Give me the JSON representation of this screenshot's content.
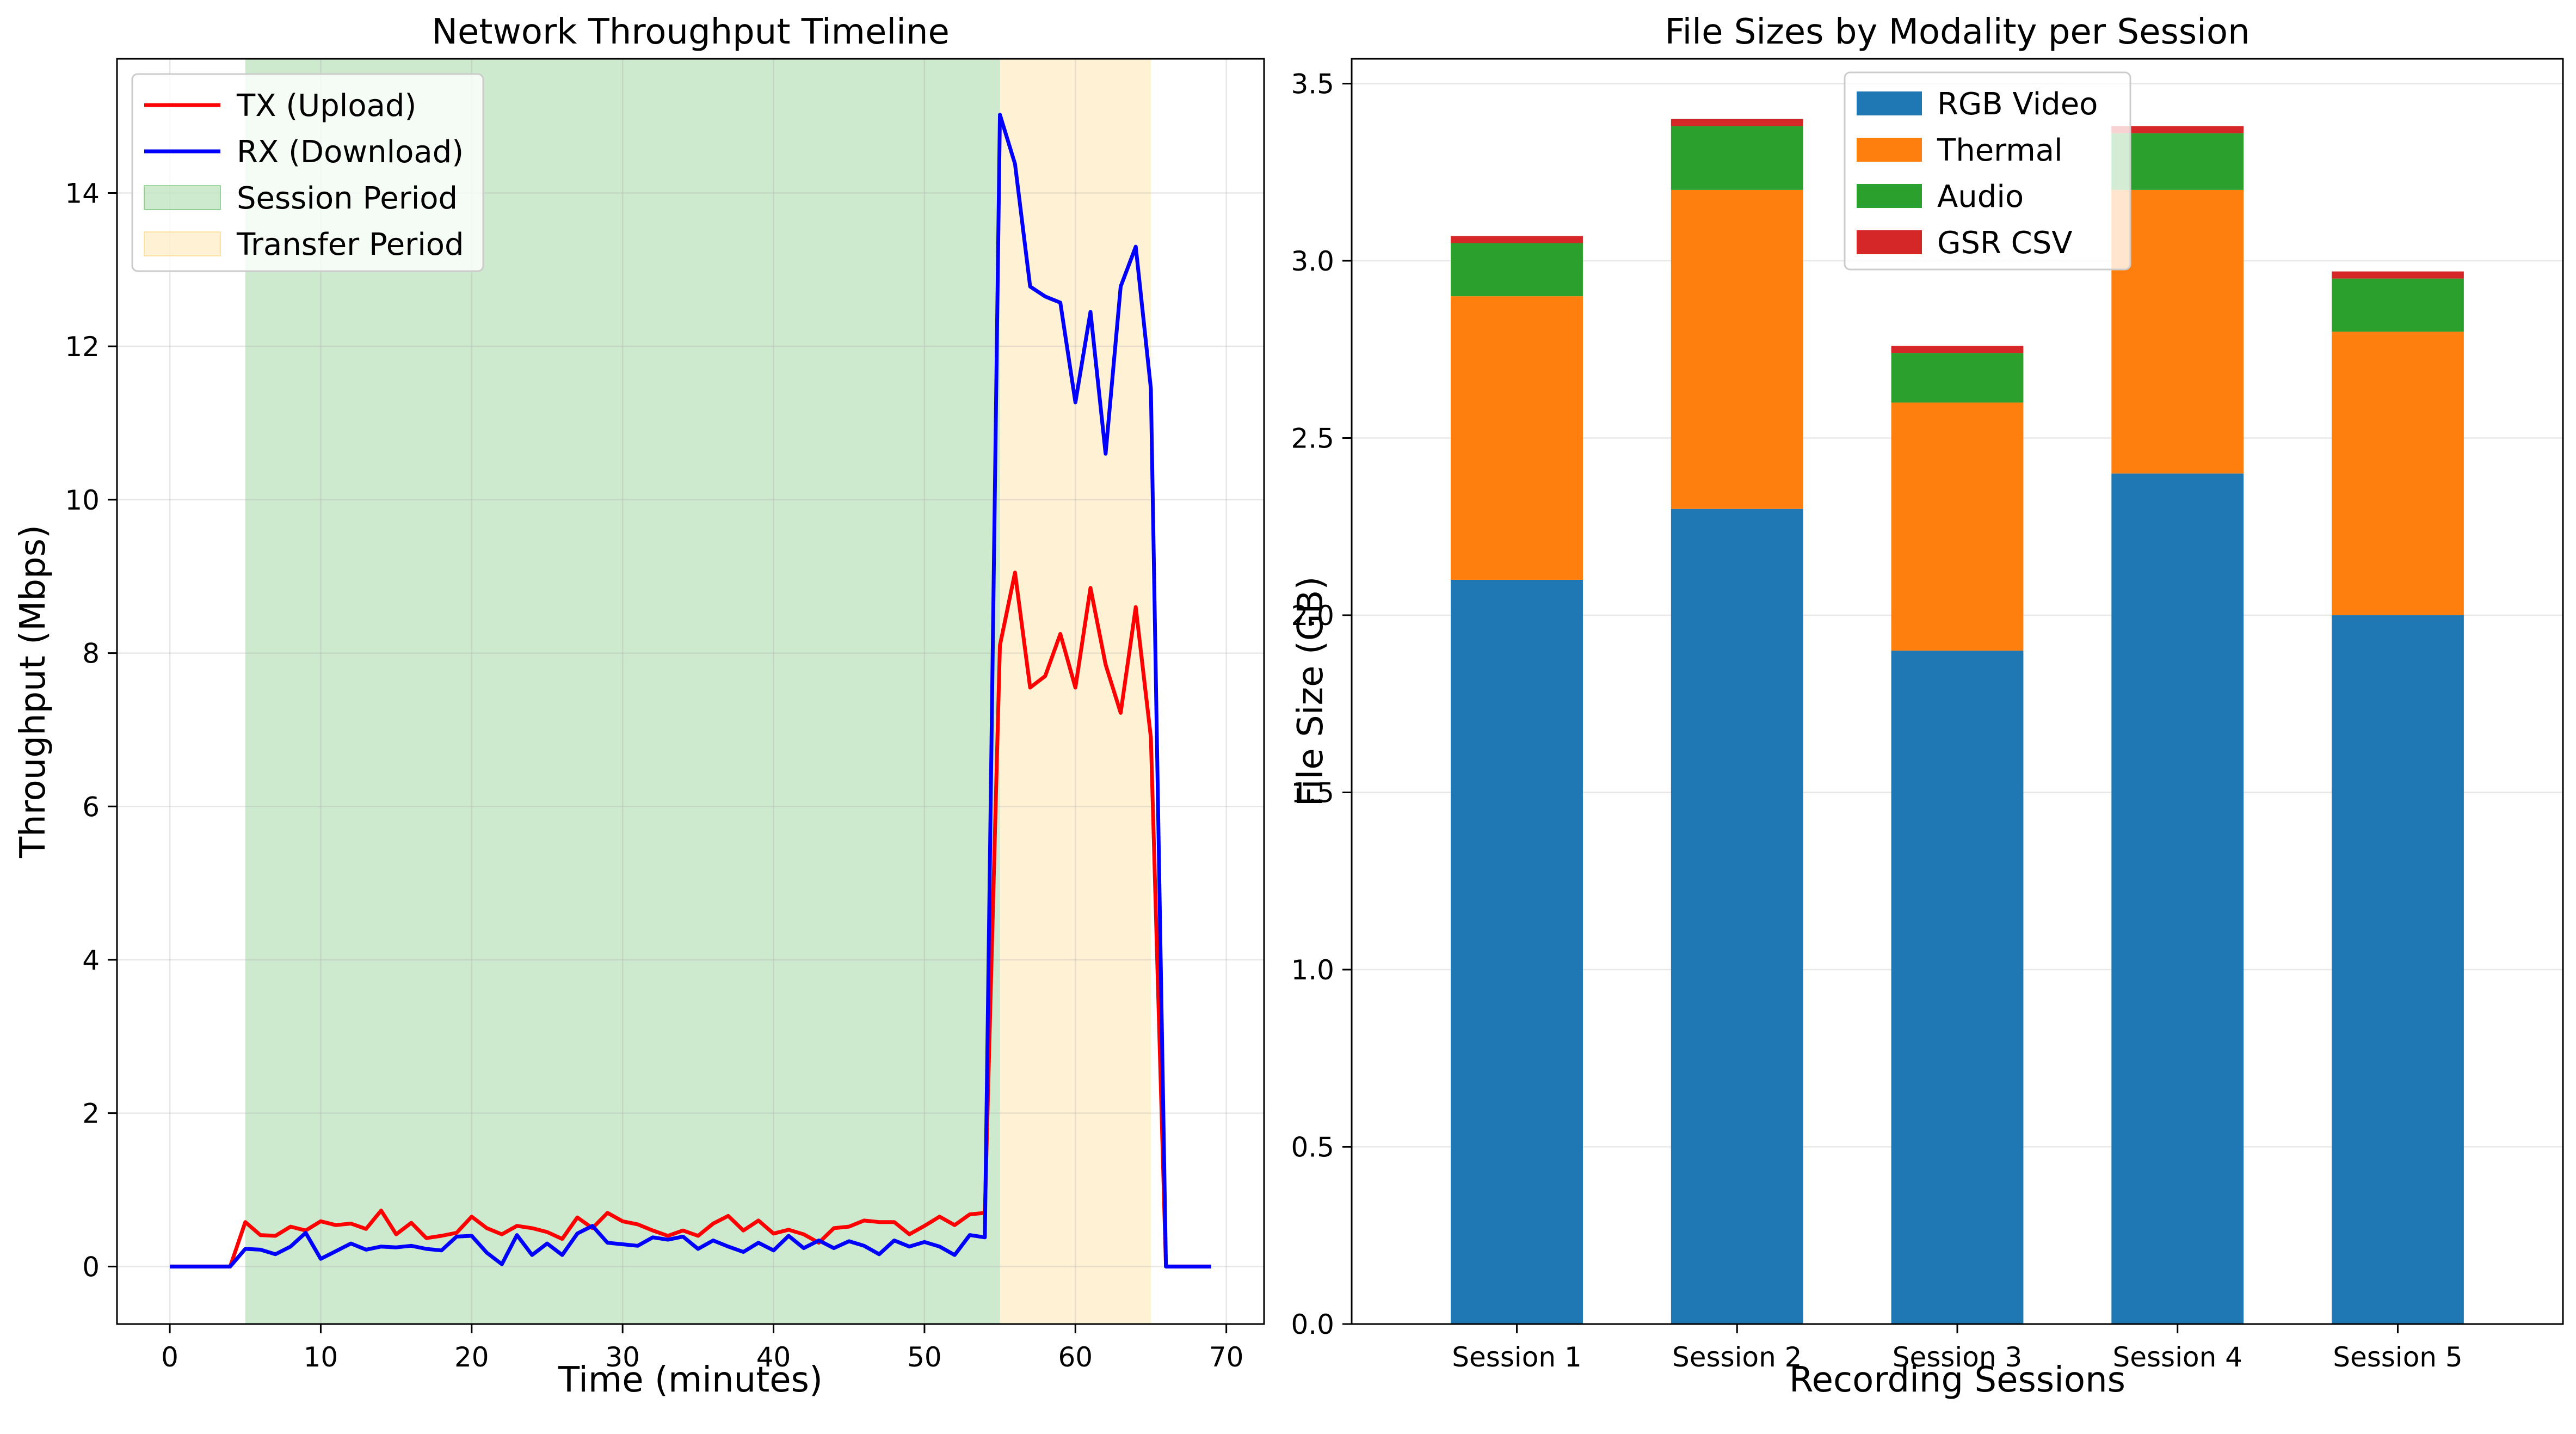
{
  "chart_data": [
    {
      "type": "line",
      "title": "Network Throughput Timeline",
      "xlabel": "Time (minutes)",
      "ylabel": "Throughput (Mbps)",
      "xlim": [
        -3.5,
        72.5
      ],
      "ylim": [
        -0.75,
        15.75
      ],
      "xticks": [
        0,
        10,
        20,
        30,
        40,
        50,
        60,
        70
      ],
      "yticks": [
        0,
        2,
        4,
        6,
        8,
        10,
        12,
        14
      ],
      "grid": true,
      "legend": "top-left",
      "spans": [
        {
          "name": "Session Period",
          "x0": 5,
          "x1": 55,
          "color": "#4caf50"
        },
        {
          "name": "Transfer Period",
          "x0": 55,
          "x1": 65,
          "color": "#ffcc66"
        }
      ],
      "series": [
        {
          "name": "TX (Upload)",
          "color": "#ff0000",
          "x": [
            0,
            1,
            2,
            3,
            4,
            5,
            6,
            7,
            8,
            9,
            10,
            11,
            12,
            13,
            14,
            15,
            16,
            17,
            18,
            19,
            20,
            21,
            22,
            23,
            24,
            25,
            26,
            27,
            28,
            29,
            30,
            31,
            32,
            33,
            34,
            35,
            36,
            37,
            38,
            39,
            40,
            41,
            42,
            43,
            44,
            45,
            46,
            47,
            48,
            49,
            50,
            51,
            52,
            53,
            54,
            55,
            56,
            57,
            58,
            59,
            60,
            61,
            62,
            63,
            64,
            65,
            66,
            67,
            68,
            69
          ],
          "values": [
            0,
            0,
            0,
            0,
            0,
            0.58,
            0.41,
            0.4,
            0.52,
            0.47,
            0.59,
            0.54,
            0.56,
            0.49,
            0.73,
            0.42,
            0.57,
            0.37,
            0.4,
            0.44,
            0.65,
            0.5,
            0.42,
            0.53,
            0.5,
            0.45,
            0.36,
            0.64,
            0.5,
            0.7,
            0.59,
            0.55,
            0.47,
            0.4,
            0.47,
            0.4,
            0.56,
            0.66,
            0.47,
            0.6,
            0.43,
            0.48,
            0.42,
            0.31,
            0.5,
            0.52,
            0.6,
            0.58,
            0.58,
            0.42,
            0.53,
            0.65,
            0.54,
            0.68,
            0.7,
            8.1,
            9.05,
            7.55,
            7.7,
            8.25,
            7.55,
            8.85,
            7.85,
            7.22,
            8.6,
            6.9,
            0,
            0,
            0,
            0
          ]
        },
        {
          "name": "RX (Download)",
          "color": "#0000ff",
          "x": [
            0,
            1,
            2,
            3,
            4,
            5,
            6,
            7,
            8,
            9,
            10,
            11,
            12,
            13,
            14,
            15,
            16,
            17,
            18,
            19,
            20,
            21,
            22,
            23,
            24,
            25,
            26,
            27,
            28,
            29,
            30,
            31,
            32,
            33,
            34,
            35,
            36,
            37,
            38,
            39,
            40,
            41,
            42,
            43,
            44,
            45,
            46,
            47,
            48,
            49,
            50,
            51,
            52,
            53,
            54,
            55,
            56,
            57,
            58,
            59,
            60,
            61,
            62,
            63,
            64,
            65,
            66,
            67,
            68,
            69
          ],
          "values": [
            0,
            0,
            0,
            0,
            0,
            0.23,
            0.22,
            0.16,
            0.26,
            0.44,
            0.1,
            0.2,
            0.3,
            0.22,
            0.26,
            0.25,
            0.27,
            0.23,
            0.21,
            0.39,
            0.4,
            0.18,
            0.03,
            0.41,
            0.15,
            0.3,
            0.15,
            0.43,
            0.53,
            0.31,
            0.29,
            0.27,
            0.38,
            0.35,
            0.39,
            0.23,
            0.34,
            0.26,
            0.19,
            0.31,
            0.21,
            0.4,
            0.24,
            0.34,
            0.24,
            0.33,
            0.27,
            0.16,
            0.34,
            0.26,
            0.32,
            0.26,
            0.15,
            0.41,
            0.38,
            15.02,
            14.38,
            12.78,
            12.65,
            12.57,
            11.27,
            12.45,
            10.6,
            12.78,
            13.3,
            11.45,
            0,
            0,
            0,
            0
          ]
        }
      ]
    },
    {
      "type": "bar",
      "stacked": true,
      "title": "File Sizes by Modality per Session",
      "xlabel": "Recording Sessions",
      "ylabel": "File Size (GB)",
      "ylim": [
        0,
        3.57
      ],
      "yticks": [
        "0.0",
        "0.5",
        "1.0",
        "1.5",
        "2.0",
        "2.5",
        "3.0",
        "3.5"
      ],
      "grid": true,
      "legend": "top-center",
      "categories": [
        "Session 1",
        "Session 2",
        "Session 3",
        "Session 4",
        "Session 5"
      ],
      "series": [
        {
          "name": "RGB Video",
          "color": "#1f77b4",
          "values": [
            2.1,
            2.3,
            1.9,
            2.4,
            2.0
          ]
        },
        {
          "name": "Thermal",
          "color": "#ff7f0e",
          "values": [
            0.8,
            0.9,
            0.7,
            0.8,
            0.8
          ]
        },
        {
          "name": "Audio",
          "color": "#2ca02c",
          "values": [
            0.15,
            0.18,
            0.14,
            0.16,
            0.15
          ]
        },
        {
          "name": "GSR CSV",
          "color": "#d62728",
          "values": [
            0.02,
            0.02,
            0.02,
            0.02,
            0.02
          ]
        }
      ]
    }
  ]
}
